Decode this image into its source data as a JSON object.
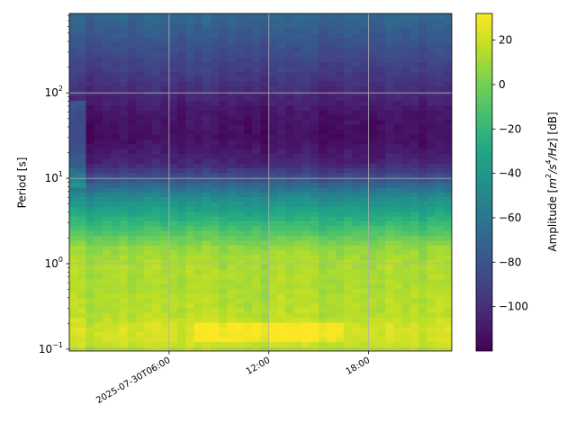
{
  "chart_data": {
    "type": "heatmap",
    "title": "",
    "xlabel": "",
    "ylabel": "Period [s]",
    "x_ticks": [
      "2025-07-30T06:00",
      "12:00",
      "18:00"
    ],
    "x_tick_hours": [
      6,
      12,
      18
    ],
    "xlim_hours": [
      0,
      23
    ],
    "y_scale": "log",
    "ylim": [
      0.095,
      850
    ],
    "y_ticks": [
      {
        "value": 0.1,
        "base": "10",
        "exp": "−1"
      },
      {
        "value": 1,
        "base": "10",
        "exp": "0"
      },
      {
        "value": 10,
        "base": "10",
        "exp": "1"
      },
      {
        "value": 100,
        "base": "10",
        "exp": "2"
      }
    ],
    "grid": true,
    "colormap": "viridis",
    "colorbar": {
      "label_parts": [
        "Amplitude [",
        "m",
        "2",
        "/s",
        "4",
        "/Hz",
        "] [dB]"
      ],
      "vmin": -120,
      "vmax": 32,
      "ticks": [
        20,
        0,
        -20,
        -40,
        -60,
        -80,
        -100
      ],
      "tick_labels": [
        "20",
        "0",
        "−20",
        "−40",
        "−60",
        "−80",
        "−100"
      ]
    },
    "amplitude_profile": [
      {
        "period": 850,
        "db": -70
      },
      {
        "period": 500,
        "db": -78
      },
      {
        "period": 200,
        "db": -92
      },
      {
        "period": 100,
        "db": -103
      },
      {
        "period": 60,
        "db": -112
      },
      {
        "period": 30,
        "db": -115
      },
      {
        "period": 15,
        "db": -105
      },
      {
        "period": 10,
        "db": -82
      },
      {
        "period": 6,
        "db": -48
      },
      {
        "period": 3,
        "db": -20
      },
      {
        "period": 1.5,
        "db": 8
      },
      {
        "period": 1,
        "db": 12
      },
      {
        "period": 0.5,
        "db": 13
      },
      {
        "period": 0.25,
        "db": 15
      },
      {
        "period": 0.17,
        "db": 22
      },
      {
        "period": 0.12,
        "db": 20
      },
      {
        "period": 0.095,
        "db": 12
      }
    ]
  }
}
